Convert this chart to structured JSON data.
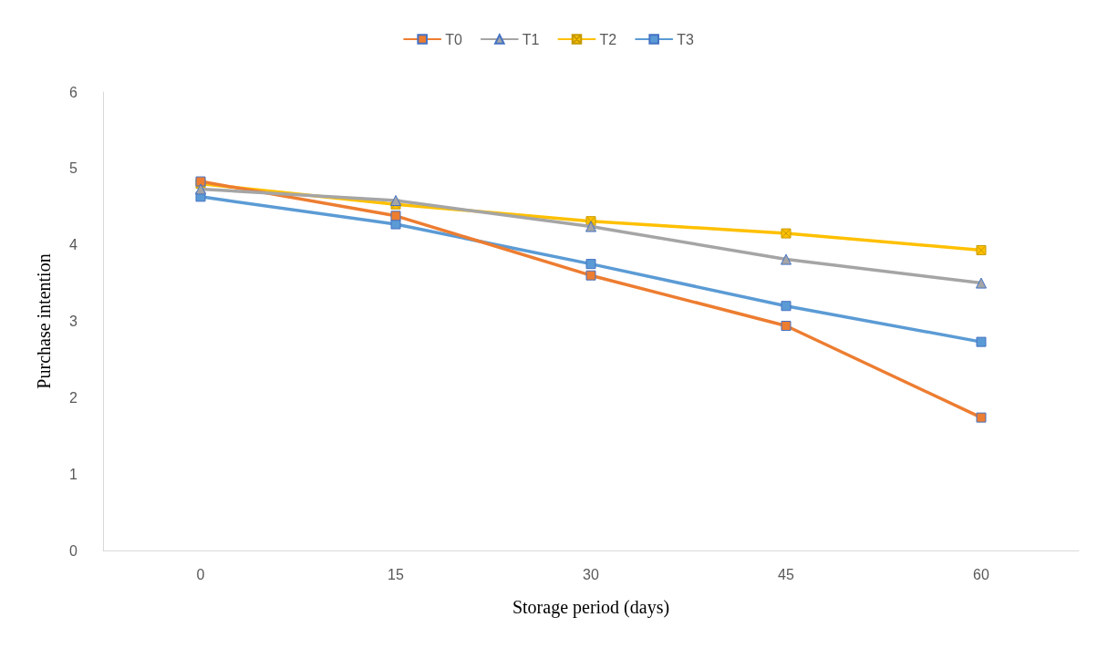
{
  "chart_data": {
    "type": "line",
    "xlabel": "Storage period (days)",
    "ylabel": "Purchase intention",
    "categories": [
      "0",
      "15",
      "30",
      "45",
      "60"
    ],
    "ylim": [
      0,
      6
    ],
    "yticks": [
      0,
      1,
      2,
      3,
      4,
      5,
      6
    ],
    "grid": false,
    "legend": "top",
    "series": [
      {
        "name": "T0",
        "color": "#ed7d31",
        "marker": "square",
        "values": [
          4.83,
          4.38,
          3.6,
          2.94,
          1.74
        ]
      },
      {
        "name": "T1",
        "color": "#a5a5a5",
        "marker": "triangle",
        "values": [
          4.73,
          4.58,
          4.24,
          3.81,
          3.5
        ]
      },
      {
        "name": "T2",
        "color": "#ffc000",
        "marker": "cross",
        "values": [
          4.8,
          4.53,
          4.31,
          4.15,
          3.93
        ]
      },
      {
        "name": "T3",
        "color": "#5b9bd5",
        "marker": "square",
        "values": [
          4.63,
          4.27,
          3.75,
          3.2,
          2.73
        ]
      }
    ]
  }
}
